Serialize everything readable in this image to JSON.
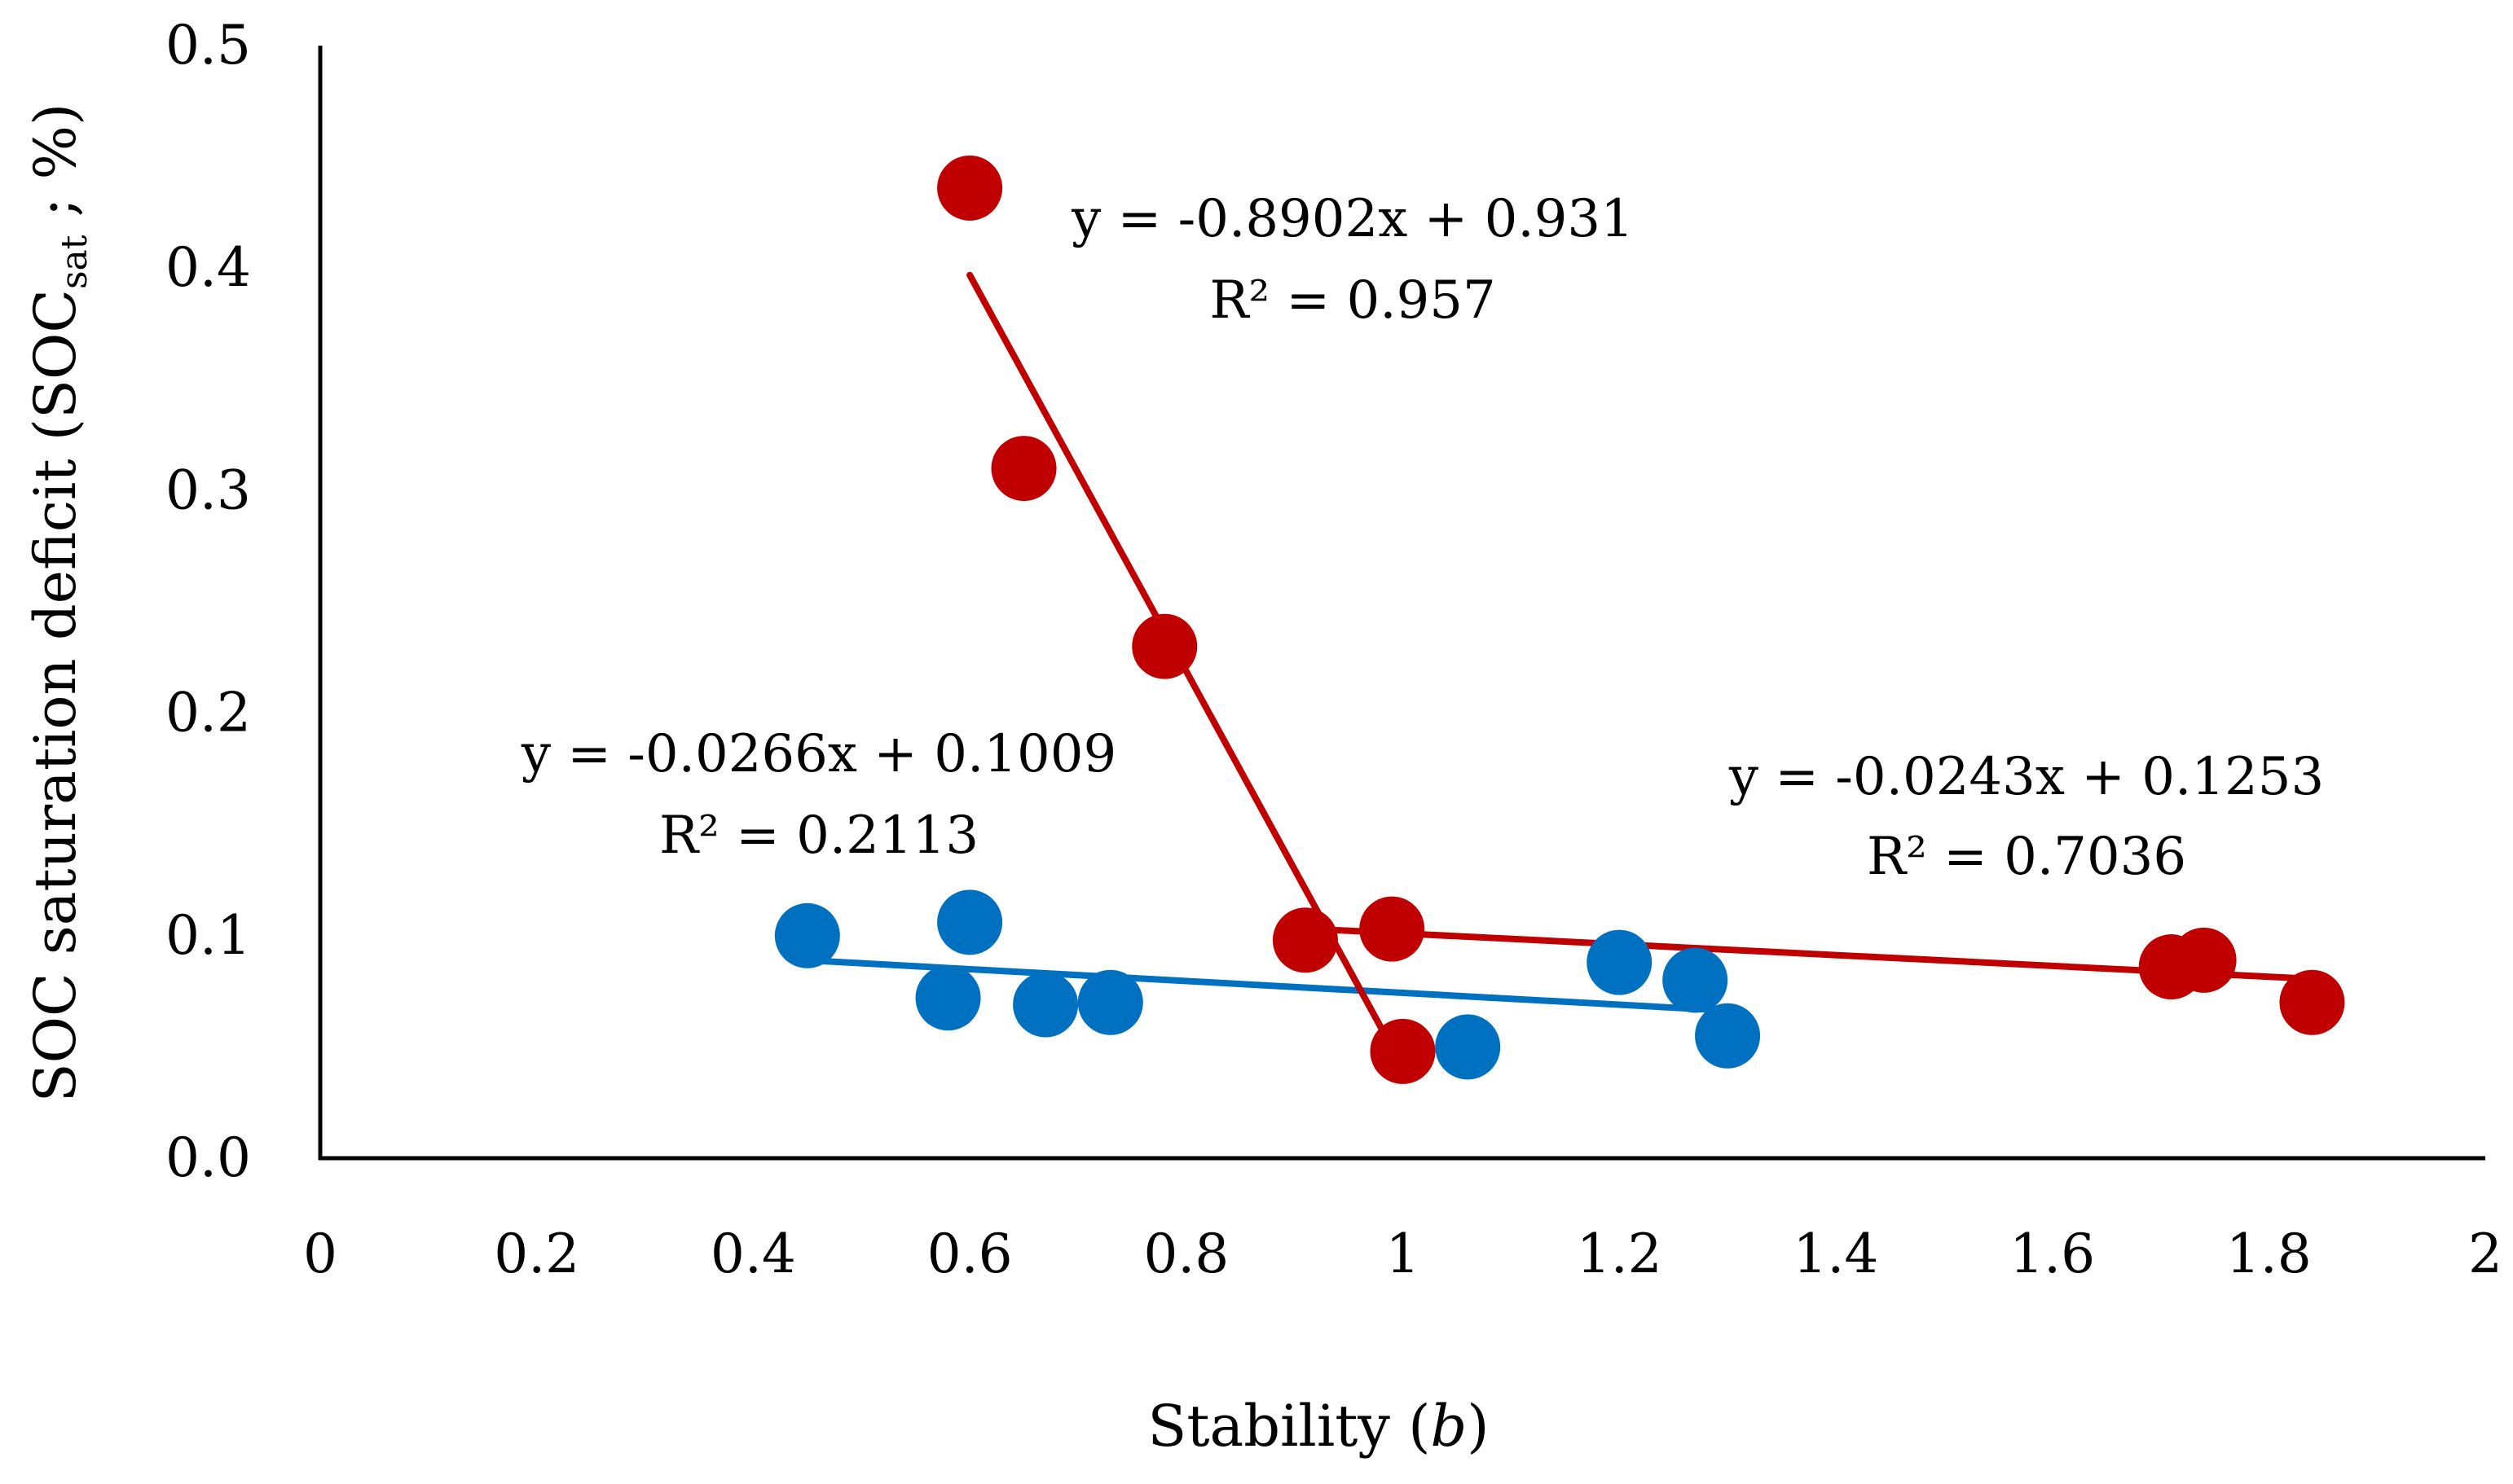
{
  "chart_data": {
    "type": "scatter",
    "title": "",
    "xlabel": "Stability",
    "xlabel_var": "b",
    "ylabel": "SOC saturation deficit (SOC",
    "ylabel_sub": "sat",
    "ylabel_end": " ; %)",
    "xlim": [
      0,
      2
    ],
    "ylim": [
      0,
      0.5
    ],
    "x_ticks": [
      "0",
      "0.2",
      "0.4",
      "0.6",
      "0.8",
      "1",
      "1.2",
      "1.4",
      "1.6",
      "1.8",
      "2"
    ],
    "y_ticks": [
      "0.0",
      "0.1",
      "0.2",
      "0.3",
      "0.4",
      "0.5"
    ],
    "series": [
      {
        "name": "blue",
        "color": "#0070C0",
        "points": [
          {
            "x": 0.45,
            "y": 0.1
          },
          {
            "x": 0.58,
            "y": 0.072
          },
          {
            "x": 0.6,
            "y": 0.106
          },
          {
            "x": 0.67,
            "y": 0.069
          },
          {
            "x": 0.73,
            "y": 0.07
          },
          {
            "x": 1.06,
            "y": 0.05
          },
          {
            "x": 1.2,
            "y": 0.088
          },
          {
            "x": 1.27,
            "y": 0.08
          },
          {
            "x": 1.3,
            "y": 0.055
          }
        ],
        "trendline": {
          "slope": -0.0266,
          "intercept": 0.1009,
          "x_range": [
            0.45,
            1.3
          ]
        },
        "equation": "y = -0.0266x + 0.1009",
        "r2": "R² = 0.2113"
      },
      {
        "name": "red-steep",
        "color": "#C00000",
        "points": [
          {
            "x": 0.6,
            "y": 0.436
          },
          {
            "x": 0.65,
            "y": 0.31
          },
          {
            "x": 0.78,
            "y": 0.23
          },
          {
            "x": 0.91,
            "y": 0.098
          },
          {
            "x": 1.0,
            "y": 0.048
          }
        ],
        "trendline": {
          "slope": -0.8902,
          "intercept": 0.931,
          "x_range": [
            0.6,
            1.0
          ]
        },
        "equation": "y = -0.8902x + 0.931",
        "r2": "R² = 0.957"
      },
      {
        "name": "red-flat",
        "color": "#C00000",
        "points": [
          {
            "x": 0.99,
            "y": 0.103
          },
          {
            "x": 1.71,
            "y": 0.086
          },
          {
            "x": 1.74,
            "y": 0.089
          },
          {
            "x": 1.84,
            "y": 0.07
          }
        ],
        "trendline": {
          "slope": -0.0243,
          "intercept": 0.1253,
          "x_range": [
            0.91,
            1.84
          ]
        },
        "equation": "y = -0.0243x + 0.1253",
        "r2": "R² = 0.7036"
      }
    ]
  }
}
